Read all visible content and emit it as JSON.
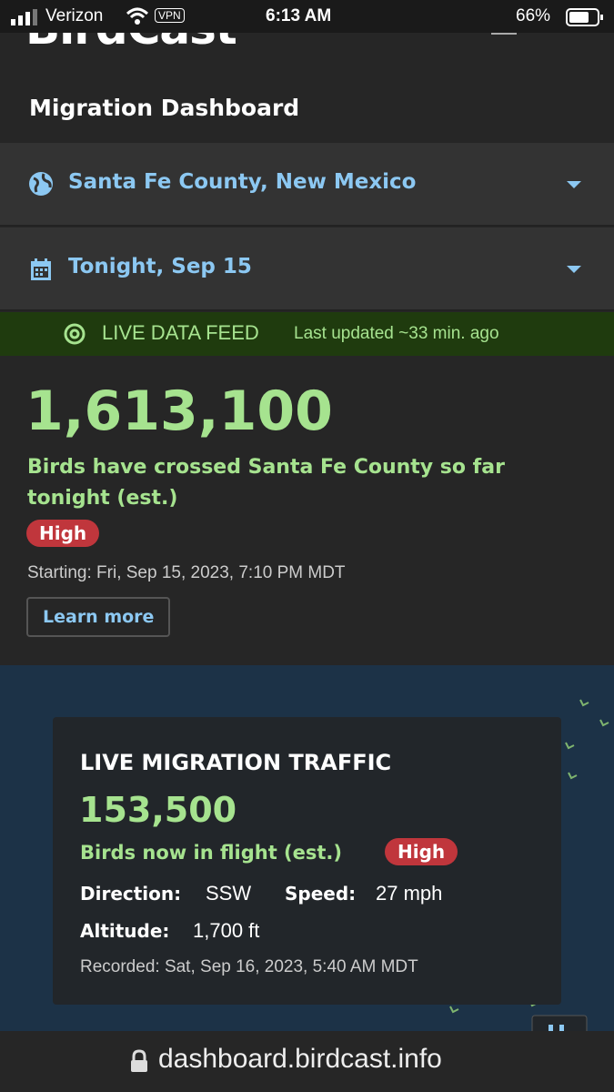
{
  "status_bar": {
    "carrier": "Verizon",
    "vpn": "VPN",
    "time": "6:13 AM",
    "battery": "66%"
  },
  "header": {
    "logo": "BirdCast",
    "title": "Migration Dashboard"
  },
  "location_select": "Santa Fe County, New Mexico",
  "date_select": "Tonight, Sep 15",
  "live_feed": {
    "label": "LIVE DATA FEED",
    "updated": "Last updated ~33 min. ago"
  },
  "summary": {
    "count": "1,613,100",
    "description": "Birds have crossed Santa Fe County so far tonight (est.)",
    "level": "High",
    "starting": "Starting: Fri, Sep 15, 2023, 7:10 PM MDT",
    "button": "Learn more"
  },
  "traffic": {
    "title": "LIVE MIGRATION TRAFFIC",
    "count": "153,500",
    "description": "Birds now in flight (est.)",
    "level": "High",
    "direction_label": "Direction:",
    "direction": "SSW",
    "speed_label": "Speed:",
    "speed": "27 mph",
    "altitude_label": "Altitude:",
    "altitude": "1,700 ft",
    "recorded": "Recorded: Sat, Sep 16, 2023, 5:40 AM MDT"
  },
  "url_bar": {
    "url": "dashboard.birdcast.info"
  }
}
